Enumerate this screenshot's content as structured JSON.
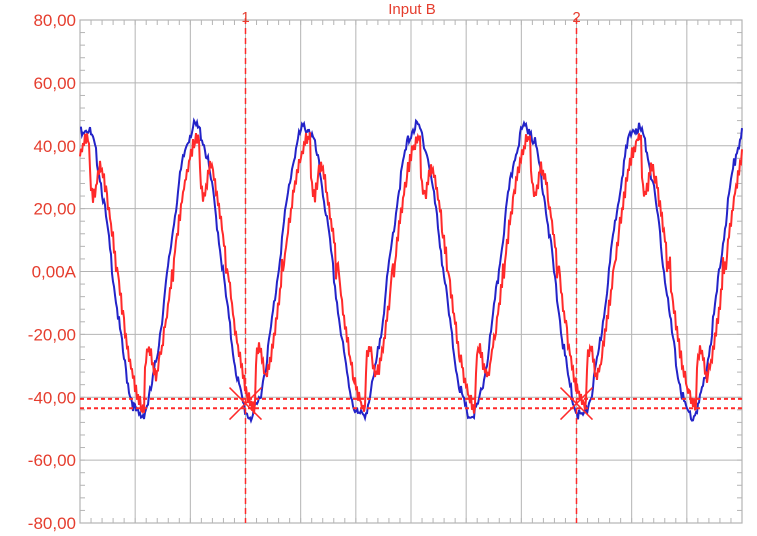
{
  "chart_data": {
    "type": "line",
    "title": "Input B",
    "ylim": [
      -80,
      80
    ],
    "y_ticks": [
      80,
      60,
      40,
      20,
      0,
      -20,
      -40,
      -60,
      -80
    ],
    "y_tick_labels": [
      "80,00",
      "60,00",
      "40,00",
      "20,00",
      "0,00A",
      "-20,00",
      "-40,00",
      "-60,00",
      "-80,00"
    ],
    "x_divisions": 12,
    "grid": true,
    "cursors": [
      {
        "label": "1",
        "x_div": 3.0
      },
      {
        "label": "2",
        "x_div": 9.0
      }
    ],
    "cursor_levels": [
      -40.5,
      -43.5
    ],
    "series": [
      {
        "color": "#2323c8",
        "shape": "sine",
        "amplitude": 46,
        "cycles": 6,
        "start_phase_deg": 90
      },
      {
        "color": "#ff2a2a",
        "shape": "distorted-sine",
        "amplitude": 43,
        "flat_band": [
          -3,
          5
        ],
        "cycles": 6
      }
    ],
    "colors": {
      "grid": "#b4b4b4",
      "cursor": "#ff2a2a",
      "labels": "#e53d2e",
      "blue": "#2323c8",
      "red": "#ff2a2a"
    }
  }
}
